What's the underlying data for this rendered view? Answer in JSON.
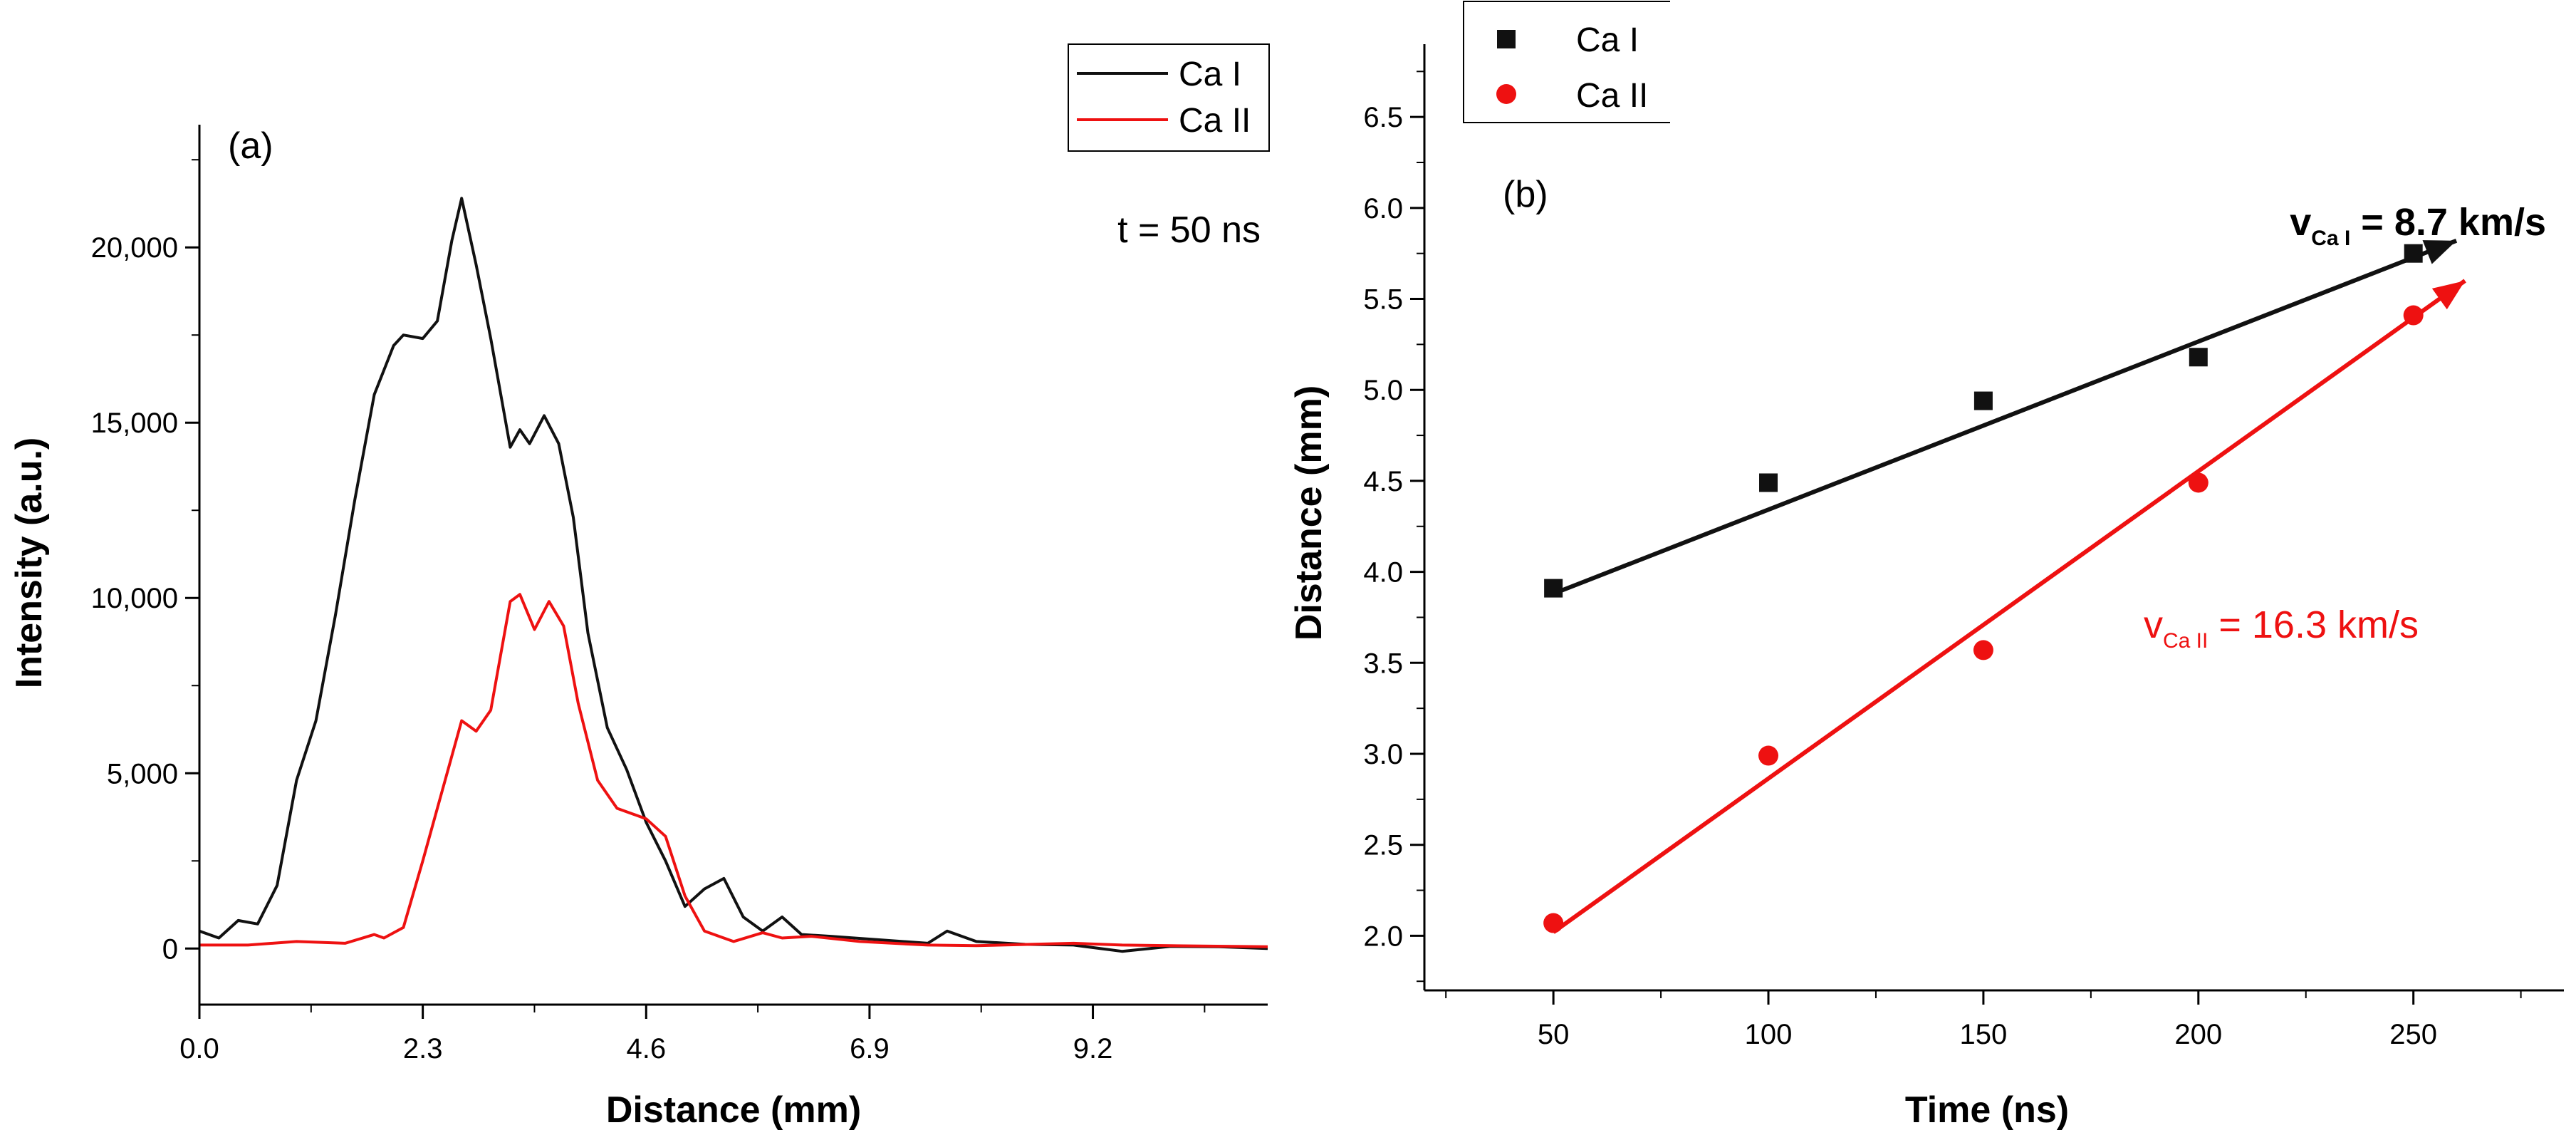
{
  "chart_data": [
    {
      "type": "line",
      "panel_label": "(a)",
      "xlabel": "Distance (mm)",
      "ylabel": "Intensity (a.u.)",
      "xlim": [
        0,
        11
      ],
      "ylim": [
        -1600,
        23500
      ],
      "xticks": [
        "0.0",
        "2.3",
        "4.6",
        "6.9",
        "9.2"
      ],
      "xtick_values": [
        0,
        2.3,
        4.6,
        6.9,
        9.2
      ],
      "yticks": [
        "0",
        "5,000",
        "10,000",
        "15,000",
        "20,000"
      ],
      "ytick_values": [
        0,
        5000,
        10000,
        15000,
        20000
      ],
      "annotation": "t = 50 ns",
      "legend_position": "top-right",
      "series": [
        {
          "name": "Ca I",
          "color": "#111111",
          "x": [
            0,
            0.2,
            0.4,
            0.6,
            0.8,
            1.0,
            1.2,
            1.4,
            1.6,
            1.8,
            2.0,
            2.1,
            2.3,
            2.45,
            2.6,
            2.7,
            2.85,
            3.0,
            3.2,
            3.3,
            3.4,
            3.55,
            3.7,
            3.85,
            4.0,
            4.2,
            4.4,
            4.6,
            4.8,
            5.0,
            5.2,
            5.4,
            5.6,
            5.8,
            6.0,
            6.2,
            6.5,
            7.0,
            7.5,
            7.7,
            8.0,
            8.5,
            9.0,
            9.5,
            10.0,
            10.5,
            11.0
          ],
          "y": [
            500,
            300,
            800,
            700,
            1800,
            4800,
            6500,
            9500,
            12800,
            15800,
            17200,
            17500,
            17400,
            17900,
            20200,
            21400,
            19500,
            17400,
            14300,
            14800,
            14400,
            15200,
            14400,
            12300,
            9000,
            6300,
            5100,
            3600,
            2500,
            1200,
            1700,
            2000,
            900,
            500,
            900,
            400,
            350,
            250,
            150,
            500,
            200,
            120,
            100,
            -80,
            60,
            50,
            0
          ]
        },
        {
          "name": "Ca II",
          "color": "#ee1111",
          "x": [
            0,
            0.5,
            1.0,
            1.5,
            1.8,
            1.9,
            2.1,
            2.3,
            2.5,
            2.7,
            2.85,
            3.0,
            3.2,
            3.3,
            3.45,
            3.6,
            3.75,
            3.9,
            4.1,
            4.3,
            4.5,
            4.6,
            4.8,
            5.0,
            5.2,
            5.5,
            5.8,
            6.0,
            6.3,
            6.8,
            7.5,
            8.0,
            9.0,
            9.5,
            10.0,
            11.0
          ],
          "y": [
            100,
            100,
            200,
            150,
            400,
            300,
            600,
            2500,
            4500,
            6500,
            6200,
            6800,
            9900,
            10100,
            9100,
            9900,
            9200,
            7000,
            4800,
            4000,
            3800,
            3700,
            3200,
            1500,
            500,
            200,
            450,
            300,
            350,
            200,
            100,
            80,
            150,
            100,
            80,
            50
          ]
        }
      ]
    },
    {
      "type": "scatter",
      "panel_label": "(b)",
      "xlabel": "Time (ns)",
      "ylabel": "Distance (mm)",
      "xlim": [
        20,
        285
      ],
      "ylim": [
        1.7,
        6.9
      ],
      "xticks": [
        "50",
        "100",
        "150",
        "200",
        "250"
      ],
      "xtick_values": [
        50,
        100,
        150,
        200,
        250
      ],
      "yticks": [
        "2.0",
        "2.5",
        "3.0",
        "3.5",
        "4.0",
        "4.5",
        "5.0",
        "5.5",
        "6.0",
        "6.5"
      ],
      "ytick_values": [
        2.0,
        2.5,
        3.0,
        3.5,
        4.0,
        4.5,
        5.0,
        5.5,
        6.0,
        6.5
      ],
      "legend_position": "top-left",
      "series": [
        {
          "name": "Ca I",
          "marker": "square",
          "color": "#111111",
          "x": [
            50,
            100,
            150,
            200,
            250
          ],
          "y": [
            3.91,
            4.49,
            4.94,
            5.18,
            5.75
          ],
          "fit": {
            "x": [
              50,
              260
            ],
            "y": [
              3.88,
              5.82
            ]
          },
          "fit_label": {
            "v": "v",
            "sub": "Ca I",
            "rest": " = 8.7 km/s"
          }
        },
        {
          "name": "Ca II",
          "marker": "circle",
          "color": "#ee1111",
          "x": [
            50,
            100,
            150,
            200,
            250
          ],
          "y": [
            2.07,
            2.99,
            3.57,
            4.49,
            5.41
          ],
          "fit": {
            "x": [
              50,
              262
            ],
            "y": [
              2.02,
              5.6
            ]
          },
          "fit_label": {
            "v": "v",
            "sub": "Ca II",
            "rest": " = 16.3 km/s"
          }
        }
      ]
    }
  ]
}
